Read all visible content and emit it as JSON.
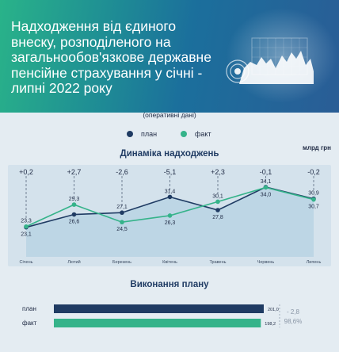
{
  "header": {
    "title": "Надходження від єдиного внеску, розподіленого на загальнообов'язкове державне пенсійне страхування у січні - липні 2022 року"
  },
  "note": "(оперативні дані)",
  "unit": "млрд грн",
  "colors": {
    "plan": "#1f3b63",
    "fact": "#35b38a",
    "area": "#b8d3e4",
    "header_start": "#29b389",
    "header_end": "#2a5d96"
  },
  "legend": [
    {
      "label": "план",
      "color": "#1f3b63"
    },
    {
      "label": "факт",
      "color": "#35b38a"
    }
  ],
  "dynamics_title": "Динаміка надходжень",
  "execution_title": "Виконання плану",
  "chart_data": [
    {
      "type": "line",
      "title": "Динаміка надходжень",
      "categories": [
        "Січень",
        "Лютий",
        "Березень",
        "Квітень",
        "Травень",
        "Червень",
        "Липень"
      ],
      "series": [
        {
          "name": "план",
          "values": [
            23.1,
            26.6,
            27.1,
            31.4,
            27.8,
            34.1,
            30.9
          ]
        },
        {
          "name": "факт",
          "values": [
            23.3,
            29.3,
            24.5,
            26.3,
            30.1,
            34.0,
            30.7
          ]
        }
      ],
      "deviation_labels": [
        "+0,2",
        "+2,7",
        "-2,6",
        "-5,1",
        "+2,3",
        "-0,1",
        "-0,2"
      ],
      "plan_labels": [
        "23,1",
        "26,6",
        "27,1",
        "31,4",
        "27,8",
        "34,1",
        "30,9"
      ],
      "fact_labels": [
        "23,3",
        "29,3",
        "24,5",
        "26,3",
        "30,1",
        "34,0",
        "30,7"
      ],
      "ylim": [
        15,
        38
      ],
      "grid": false
    },
    {
      "type": "bar",
      "title": "Виконання плану",
      "categories": [
        "план",
        "факт"
      ],
      "values": [
        201.0,
        198.2
      ],
      "value_labels": [
        "201,0",
        "198,2"
      ],
      "difference_label": "- 2,8",
      "percent_label": "98,6%"
    }
  ]
}
